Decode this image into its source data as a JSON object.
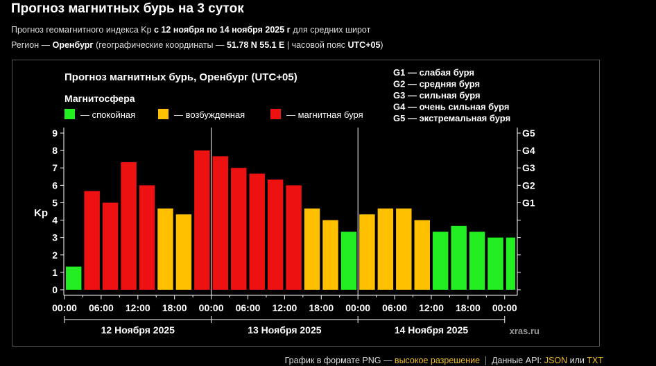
{
  "page": {
    "title": "Прогноз магнитных бурь на 3 суток",
    "sub1": {
      "pre": "Прогноз геомагнитного индекса Kp ",
      "bold": "с 12 ноября по 14 ноября 2025 г",
      "post": " для средних широт"
    },
    "sub2": {
      "pre": "Регион — ",
      "region": "Оренбург",
      "mid": " (географические координаты — ",
      "coords": "51.78 N 55.1 E",
      "mid2": " | часовой пояс ",
      "tz": "UTC+05",
      "post": ")"
    }
  },
  "footer": {
    "pre": "График в формате ",
    "png": "PNG",
    "dash": " — ",
    "hires": "высокое разрешение",
    "api": "Данные API: ",
    "json": "JSON",
    "or": " или ",
    "txt": "TXT"
  },
  "chart_data": {
    "type": "bar",
    "title": "Прогноз магнитных бурь, Оренбург (UTC+05)",
    "legend_title": "Магнитосфера",
    "legend": [
      {
        "label": "— спокойная",
        "color": "#22ee22"
      },
      {
        "label": "— возбужденная",
        "color": "#ffc000"
      },
      {
        "label": "— магнитная буря",
        "color": "#ee1111"
      }
    ],
    "storm_legend": [
      "G1 — слабая буря",
      "G2 — средняя буря",
      "G3 — сильная буря",
      "G4 — очень сильная буря",
      "G5 — экстремальная буря"
    ],
    "ylabel": "Kp",
    "ylim": [
      0,
      9
    ],
    "yticks": [
      "0",
      "1",
      "2",
      "3",
      "4",
      "5",
      "6",
      "7",
      "8",
      "9"
    ],
    "g_levels": [
      {
        "label": "G1",
        "value": 5
      },
      {
        "label": "G2",
        "value": 6
      },
      {
        "label": "G3",
        "value": 7
      },
      {
        "label": "G4",
        "value": 8
      },
      {
        "label": "G5",
        "value": 9
      }
    ],
    "xticks": [
      "00:00",
      "06:00",
      "12:00",
      "18:00",
      "00:00",
      "06:00",
      "12:00",
      "18:00",
      "00:00",
      "06:00",
      "12:00",
      "18:00",
      "00:00"
    ],
    "days": [
      "12 Ноября 2025",
      "13 Ноября 2025",
      "14 Ноября 2025"
    ],
    "values": [
      1.33,
      5.67,
      5.0,
      7.33,
      6.0,
      4.67,
      4.33,
      8.0,
      7.67,
      7.0,
      6.67,
      6.33,
      6.0,
      4.67,
      4.0,
      3.33,
      4.33,
      4.67,
      4.67,
      4.0,
      3.33,
      3.67,
      3.33,
      3.0,
      3.0
    ],
    "colors": {
      "quiet": "#22ee22",
      "active": "#ffc000",
      "storm": "#ee1111"
    },
    "watermark": "xras.ru"
  }
}
